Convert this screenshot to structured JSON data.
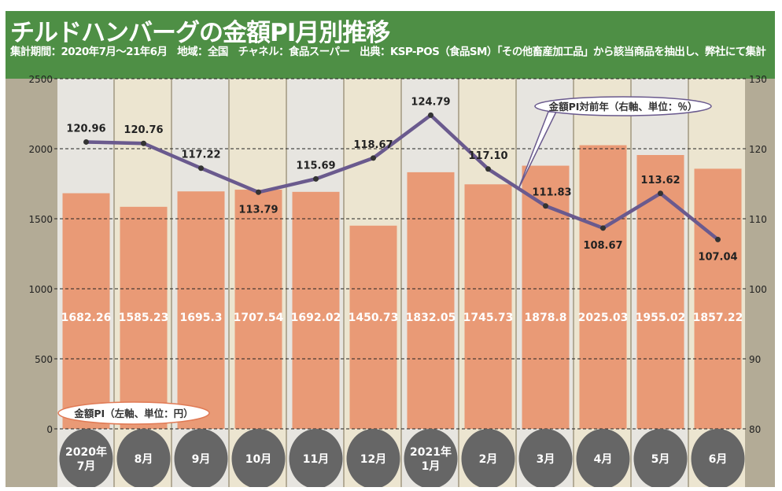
{
  "header": {
    "title": "チルドハンバーグの金額PI月別推移",
    "subtitle": "集計期間：2020年7月～21年6月　地域：全国　チャネル：食品スーパー　出典：KSP-POS（食品SM）「その他畜産加工品」から該当商品を抽出し、弊社にて集計"
  },
  "chart_data": {
    "type": "bar+line",
    "categories": [
      "2020年\n7月",
      "8月",
      "9月",
      "10月",
      "11月",
      "12月",
      "2021年\n1月",
      "2月",
      "3月",
      "4月",
      "5月",
      "6月"
    ],
    "series": [
      {
        "name": "金額PI（左軸、単位：円）",
        "type": "bar",
        "axis": "left",
        "color": "#e99a76",
        "values": [
          1682.26,
          1585.23,
          1695.3,
          1707.54,
          1692.02,
          1450.73,
          1832.05,
          1745.73,
          1878.8,
          2025.03,
          1955.02,
          1857.22
        ],
        "labels": [
          "1682.26",
          "1585.23",
          "1695.3",
          "1707.54",
          "1692.02",
          "1450.73",
          "1832.05",
          "1745.73",
          "1878.8",
          "2025.03",
          "1955.02",
          "1857.22"
        ]
      },
      {
        "name": "金額PI対前年（右軸、単位：％）",
        "type": "line",
        "axis": "right",
        "color": "#6a5a8e",
        "values": [
          120.96,
          120.76,
          117.22,
          113.79,
          115.69,
          118.67,
          124.79,
          117.1,
          111.83,
          108.67,
          113.62,
          107.04
        ],
        "labels": [
          "120.96",
          "120.76",
          "117.22",
          "113.79",
          "115.69",
          "118.67",
          "124.79",
          "117.10",
          "111.83",
          "108.67",
          "113.62",
          "107.04"
        ]
      }
    ],
    "left_axis": {
      "range": [
        0,
        2500
      ],
      "ticks": [
        "0",
        "500",
        "1000",
        "1500",
        "2000",
        "2500"
      ]
    },
    "right_axis": {
      "range": [
        80,
        130
      ],
      "ticks": [
        "80",
        "90",
        "100",
        "110",
        "120",
        "130"
      ]
    },
    "grid": "dashed horizontal"
  }
}
